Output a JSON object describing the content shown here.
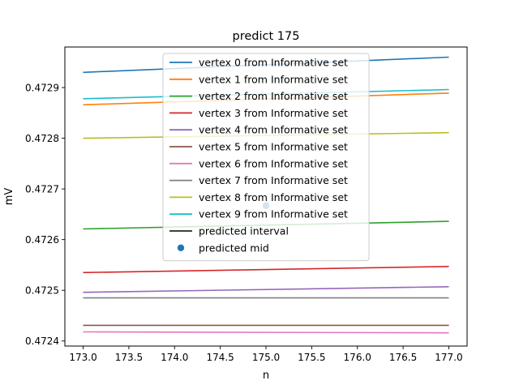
{
  "chart_data": {
    "type": "line",
    "title": "predict 175",
    "xlabel": "n",
    "ylabel": "mV",
    "xlim": [
      172.8,
      177.2
    ],
    "ylim": [
      0.47239,
      0.47298
    ],
    "xticks": [
      173.0,
      173.5,
      174.0,
      174.5,
      175.0,
      175.5,
      176.0,
      176.5,
      177.0
    ],
    "xtick_labels": [
      "173.0",
      "173.5",
      "174.0",
      "174.5",
      "175.0",
      "175.5",
      "176.0",
      "176.5",
      "177.0"
    ],
    "yticks": [
      0.4724,
      0.4725,
      0.4726,
      0.4727,
      0.4728,
      0.4729
    ],
    "ytick_labels": [
      "0.4724",
      "0.4725",
      "0.4726",
      "0.4727",
      "0.4728",
      "0.4729"
    ],
    "grid": false,
    "legend_position": "top-center",
    "series": [
      {
        "name": "vertex 0 from Informative set",
        "color": "#1f77b4",
        "x": [
          173,
          177
        ],
        "y": [
          0.47293,
          0.47296
        ]
      },
      {
        "name": "vertex 1 from Informative set",
        "color": "#ff7f0e",
        "x": [
          173,
          177
        ],
        "y": [
          0.472866,
          0.472889
        ]
      },
      {
        "name": "vertex 2 from Informative set",
        "color": "#2ca02c",
        "x": [
          173,
          177
        ],
        "y": [
          0.472621,
          0.472636
        ]
      },
      {
        "name": "vertex 3 from Informative set",
        "color": "#d62728",
        "x": [
          173,
          177
        ],
        "y": [
          0.472535,
          0.472547
        ]
      },
      {
        "name": "vertex 4 from Informative set",
        "color": "#9467bd",
        "x": [
          173,
          177
        ],
        "y": [
          0.472496,
          0.472507
        ]
      },
      {
        "name": "vertex 5 from Informative set",
        "color": "#8c564b",
        "x": [
          173,
          177
        ],
        "y": [
          0.472431,
          0.472431
        ]
      },
      {
        "name": "vertex 6 from Informative set",
        "color": "#e377c2",
        "x": [
          173,
          177
        ],
        "y": [
          0.472418,
          0.472416
        ]
      },
      {
        "name": "vertex 7 from Informative set",
        "color": "#7f7f7f",
        "x": [
          173,
          177
        ],
        "y": [
          0.472485,
          0.472485
        ]
      },
      {
        "name": "vertex 8 from Informative set",
        "color": "#bcbd22",
        "x": [
          173,
          177
        ],
        "y": [
          0.4728,
          0.472811
        ]
      },
      {
        "name": "vertex 9 from Informative set",
        "color": "#17becf",
        "x": [
          173,
          177
        ],
        "y": [
          0.472878,
          0.472896
        ]
      }
    ],
    "predicted_interval": {
      "name": "predicted interval",
      "color": "#000000"
    },
    "predicted_mid": {
      "name": "predicted mid",
      "color": "#1f77b4",
      "x": 175.0,
      "y": 0.472667
    }
  }
}
